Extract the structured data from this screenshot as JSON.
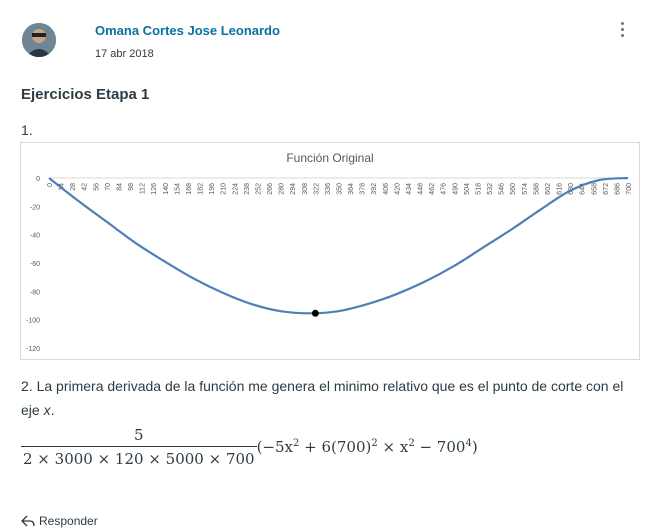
{
  "post": {
    "author": "Omana Cortes Jose Leonardo",
    "date": "17 abr 2018",
    "heading": "Ejercicios Etapa 1",
    "item1": "1.",
    "item2_text": "2. La primera derivada de la función me genera el minimo relativo que es el punto de corte con el eje ",
    "item2_var": "x",
    "item2_end": ".",
    "formula": {
      "numerator": "5",
      "denominator": "2 × 3000 × 120 × 5000 × 700",
      "rest_a": "(−5x",
      "rest_b": " + 6(700)",
      "rest_c": " × x",
      "rest_d": " − 700",
      "rest_e": ")",
      "exp2": "2",
      "exp4": "4"
    },
    "reply_label": "Responder"
  },
  "icons": {
    "reply": "reply-icon",
    "menu": "kebab-menu-icon"
  },
  "chart_data": {
    "type": "line",
    "title": "Función Original",
    "xlabel": "",
    "ylabel": "",
    "xlim": [
      0,
      700
    ],
    "ylim": [
      -120,
      0
    ],
    "x_ticks": [
      0,
      14,
      28,
      42,
      56,
      70,
      84,
      98,
      112,
      126,
      140,
      154,
      168,
      182,
      196,
      210,
      224,
      238,
      252,
      266,
      280,
      294,
      308,
      322,
      336,
      350,
      364,
      378,
      392,
      406,
      420,
      434,
      448,
      462,
      476,
      490,
      504,
      518,
      532,
      546,
      560,
      574,
      588,
      602,
      616,
      630,
      644,
      658,
      672,
      686,
      700
    ],
    "y_ticks": [
      0,
      -20,
      -40,
      -60,
      -80,
      -100,
      -120
    ],
    "grid": false,
    "line_color": "#4e7fb6",
    "series": [
      {
        "x": [
          0,
          35,
          70,
          105,
          140,
          175,
          210,
          245,
          280,
          315,
          350,
          385,
          420,
          455,
          490,
          525,
          560,
          595,
          630,
          665,
          700
        ],
        "y": [
          0,
          -16,
          -31,
          -46,
          -59,
          -71,
          -81,
          -89,
          -94,
          -95.5,
          -94,
          -89,
          -82,
          -73,
          -62,
          -49,
          -36,
          -22,
          -9,
          -1.5,
          0
        ]
      }
    ],
    "marker": {
      "x": 322,
      "y": -95.5,
      "color": "#000000"
    }
  }
}
